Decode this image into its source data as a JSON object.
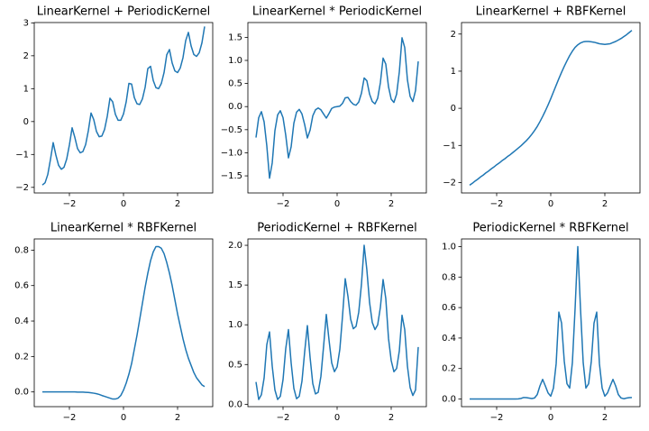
{
  "chart_data": [
    {
      "type": "line",
      "title": "LinearKernel + PeriodicKernel",
      "color": "#1f77b4",
      "x": [
        -3,
        -2.9,
        -2.8,
        -2.7,
        -2.6,
        -2.5,
        -2.4,
        -2.3,
        -2.2,
        -2.1,
        -2,
        -1.9,
        -1.8,
        -1.7,
        -1.6,
        -1.5,
        -1.4,
        -1.3,
        -1.2,
        -1.1,
        -1,
        -0.9,
        -0.8,
        -0.7,
        -0.6,
        -0.5,
        -0.4,
        -0.3,
        -0.2,
        -0.1,
        0,
        0.1,
        0.2,
        0.3,
        0.4,
        0.5,
        0.6,
        0.7,
        0.8,
        0.9,
        1,
        1.1,
        1.2,
        1.3,
        1.4,
        1.5,
        1.6,
        1.7,
        1.8,
        1.9,
        2,
        2.1,
        2.2,
        2.3,
        2.4,
        2.5,
        2.6,
        2.7,
        2.8,
        2.9,
        3
      ],
      "values": [
        -1.93,
        -1.86,
        -1.61,
        -1.15,
        -0.64,
        -1.02,
        -1.33,
        -1.45,
        -1.39,
        -1.14,
        -0.71,
        -0.19,
        -0.48,
        -0.82,
        -0.95,
        -0.91,
        -0.7,
        -0.28,
        0.26,
        0.06,
        -0.3,
        -0.46,
        -0.44,
        -0.24,
        0.16,
        0.71,
        0.6,
        0.22,
        0.04,
        0.04,
        0.23,
        0.6,
        1.16,
        1.14,
        0.73,
        0.54,
        0.52,
        0.69,
        1.04,
        1.61,
        1.68,
        1.25,
        1.03,
        1,
        1.16,
        1.49,
        2.03,
        2.19,
        1.78,
        1.54,
        1.49,
        1.63,
        1.94,
        2.46,
        2.71,
        2.3,
        2.04,
        1.98,
        2.09,
        2.39,
        2.89
      ],
      "xlim": [
        -3.3,
        3.3
      ],
      "ylim": [
        -2.17,
        3.01
      ],
      "xticks": [
        {
          "value": -2,
          "label": "−2"
        },
        0,
        2
      ],
      "yticks": [
        {
          "value": -2,
          "label": "−2"
        },
        {
          "value": -1,
          "label": "−1"
        },
        0,
        1,
        2,
        3
      ]
    },
    {
      "type": "line",
      "title": "LinearKernel * PeriodicKernel",
      "color": "#1f77b4",
      "x": [
        -3,
        -2.9,
        -2.8,
        -2.7,
        -2.6,
        -2.5,
        -2.4,
        -2.3,
        -2.2,
        -2.1,
        -2,
        -1.9,
        -1.8,
        -1.7,
        -1.6,
        -1.5,
        -1.4,
        -1.3,
        -1.2,
        -1.1,
        -1,
        -0.9,
        -0.8,
        -0.7,
        -0.6,
        -0.5,
        -0.4,
        -0.3,
        -0.2,
        -0.1,
        0,
        0.1,
        0.2,
        0.3,
        0.4,
        0.5,
        0.6,
        0.7,
        0.8,
        0.9,
        1,
        1.1,
        1.2,
        1.3,
        1.4,
        1.5,
        1.6,
        1.7,
        1.8,
        1.9,
        2,
        2.1,
        2.2,
        2.3,
        2.4,
        2.5,
        2.6,
        2.7,
        2.8,
        2.9,
        3
      ],
      "values": [
        -0.67,
        -0.24,
        -0.11,
        -0.33,
        -0.85,
        -1.55,
        -1.22,
        -0.52,
        -0.18,
        -0.09,
        -0.24,
        -0.62,
        -1.11,
        -0.87,
        -0.36,
        -0.12,
        -0.06,
        -0.16,
        -0.39,
        -0.68,
        -0.51,
        -0.2,
        -0.07,
        -0.03,
        -0.07,
        -0.16,
        -0.25,
        -0.15,
        -0.04,
        -0.01,
        0,
        0.01,
        0.07,
        0.19,
        0.2,
        0.11,
        0.05,
        0.03,
        0.1,
        0.29,
        0.62,
        0.56,
        0.27,
        0.11,
        0.06,
        0.18,
        0.52,
        1.05,
        0.92,
        0.43,
        0.16,
        0.09,
        0.27,
        0.75,
        1.49,
        1.28,
        0.58,
        0.22,
        0.11,
        0.35,
        0.98
      ],
      "xlim": [
        -3.3,
        3.3
      ],
      "ylim": [
        -1.87,
        1.82
      ],
      "xticks": [
        {
          "value": -2,
          "label": "−2"
        },
        0,
        2
      ],
      "yticks": [
        {
          "value": -1.5,
          "label": "−1.5"
        },
        {
          "value": -1,
          "label": "−1.0"
        },
        {
          "value": -0.5,
          "label": "−0.5"
        },
        {
          "value": 0,
          "label": "0.0"
        },
        0.5,
        {
          "value": 1,
          "label": "1.0"
        },
        1.5
      ]
    },
    {
      "type": "line",
      "title": "LinearKernel + RBFKernel",
      "color": "#1f77b4",
      "x": [
        -3,
        -2.9,
        -2.8,
        -2.7,
        -2.6,
        -2.5,
        -2.4,
        -2.3,
        -2.2,
        -2.1,
        -2,
        -1.9,
        -1.8,
        -1.7,
        -1.6,
        -1.5,
        -1.4,
        -1.3,
        -1.2,
        -1.1,
        -1,
        -0.9,
        -0.8,
        -0.7,
        -0.6,
        -0.5,
        -0.4,
        -0.3,
        -0.2,
        -0.1,
        0,
        0.1,
        0.2,
        0.3,
        0.4,
        0.5,
        0.6,
        0.7,
        0.8,
        0.9,
        1,
        1.1,
        1.2,
        1.3,
        1.4,
        1.5,
        1.6,
        1.7,
        1.8,
        1.9,
        2,
        2.1,
        2.2,
        2.3,
        2.4,
        2.5,
        2.6,
        2.7,
        2.8,
        2.9,
        3
      ],
      "values": [
        -2.07,
        -2.02,
        -1.96,
        -1.91,
        -1.85,
        -1.8,
        -1.74,
        -1.69,
        -1.63,
        -1.58,
        -1.52,
        -1.47,
        -1.41,
        -1.36,
        -1.3,
        -1.25,
        -1.19,
        -1.13,
        -1.07,
        -1.01,
        -0.94,
        -0.87,
        -0.79,
        -0.7,
        -0.6,
        -0.49,
        -0.36,
        -0.22,
        -0.07,
        0.09,
        0.26,
        0.44,
        0.62,
        0.8,
        0.97,
        1.13,
        1.28,
        1.42,
        1.54,
        1.64,
        1.71,
        1.76,
        1.79,
        1.8,
        1.8,
        1.79,
        1.78,
        1.76,
        1.74,
        1.73,
        1.72,
        1.73,
        1.74,
        1.77,
        1.8,
        1.84,
        1.88,
        1.93,
        1.98,
        2.04,
        2.1
      ],
      "xlim": [
        -3.3,
        3.3
      ],
      "ylim": [
        -2.28,
        2.31
      ],
      "xticks": [
        {
          "value": -2,
          "label": "−2"
        },
        0,
        2
      ],
      "yticks": [
        {
          "value": -2,
          "label": "−2"
        },
        {
          "value": -1,
          "label": "−1"
        },
        0,
        1,
        2
      ]
    },
    {
      "type": "line",
      "title": "LinearKernel * RBFKernel",
      "color": "#1f77b4",
      "x": [
        -3,
        -2.9,
        -2.8,
        -2.7,
        -2.6,
        -2.5,
        -2.4,
        -2.3,
        -2.2,
        -2.1,
        -2,
        -1.9,
        -1.8,
        -1.7,
        -1.6,
        -1.5,
        -1.4,
        -1.3,
        -1.2,
        -1.1,
        -1,
        -0.9,
        -0.8,
        -0.7,
        -0.6,
        -0.5,
        -0.4,
        -0.3,
        -0.2,
        -0.1,
        0,
        0.1,
        0.2,
        0.3,
        0.4,
        0.5,
        0.6,
        0.7,
        0.8,
        0.9,
        1,
        1.1,
        1.2,
        1.3,
        1.4,
        1.5,
        1.6,
        1.7,
        1.8,
        1.9,
        2,
        2.1,
        2.2,
        2.3,
        2.4,
        2.5,
        2.6,
        2.7,
        2.8,
        2.9,
        3
      ],
      "values": [
        0,
        0,
        0,
        0,
        0,
        0,
        0,
        0,
        0,
        0,
        0,
        0,
        0,
        -0.001,
        -0.001,
        -0.001,
        -0.002,
        -0.003,
        -0.005,
        -0.007,
        -0.01,
        -0.014,
        -0.02,
        -0.025,
        -0.03,
        -0.035,
        -0.04,
        -0.04,
        -0.035,
        -0.02,
        0.01,
        0.05,
        0.1,
        0.16,
        0.24,
        0.32,
        0.41,
        0.5,
        0.59,
        0.67,
        0.74,
        0.79,
        0.82,
        0.82,
        0.81,
        0.78,
        0.73,
        0.67,
        0.6,
        0.52,
        0.44,
        0.37,
        0.3,
        0.24,
        0.19,
        0.15,
        0.11,
        0.08,
        0.06,
        0.04,
        0.03
      ],
      "xlim": [
        -3.3,
        3.3
      ],
      "ylim": [
        -0.083,
        0.863
      ],
      "xticks": [
        {
          "value": -2,
          "label": "−2"
        },
        0,
        2
      ],
      "yticks": [
        {
          "value": 0,
          "label": "0.0"
        },
        0.2,
        0.4,
        0.6,
        0.8
      ]
    },
    {
      "type": "line",
      "title": "PeriodicKernel + RBFKernel",
      "color": "#1f77b4",
      "x": [
        -3,
        -2.9,
        -2.8,
        -2.7,
        -2.6,
        -2.5,
        -2.4,
        -2.3,
        -2.2,
        -2.1,
        -2,
        -1.9,
        -1.8,
        -1.7,
        -1.6,
        -1.5,
        -1.4,
        -1.3,
        -1.2,
        -1.1,
        -1,
        -0.9,
        -0.8,
        -0.7,
        -0.6,
        -0.5,
        -0.4,
        -0.3,
        -0.2,
        -0.1,
        0,
        0.1,
        0.2,
        0.3,
        0.4,
        0.5,
        0.6,
        0.7,
        0.8,
        0.9,
        1,
        1.1,
        1.2,
        1.3,
        1.4,
        1.5,
        1.6,
        1.7,
        1.8,
        1.9,
        2,
        2.1,
        2.2,
        2.3,
        2.4,
        2.5,
        2.6,
        2.7,
        2.8,
        2.9,
        3
      ],
      "values": [
        0.28,
        0.06,
        0.12,
        0.33,
        0.75,
        0.91,
        0.48,
        0.18,
        0.06,
        0.1,
        0.31,
        0.7,
        0.94,
        0.52,
        0.2,
        0.07,
        0.1,
        0.29,
        0.66,
        0.99,
        0.59,
        0.26,
        0.13,
        0.15,
        0.35,
        0.73,
        1.13,
        0.81,
        0.52,
        0.41,
        0.47,
        0.69,
        1.11,
        1.58,
        1.36,
        1.07,
        0.95,
        0.98,
        1.16,
        1.51,
        2,
        1.69,
        1.28,
        1.03,
        0.94,
        1,
        1.22,
        1.57,
        1.33,
        0.83,
        0.55,
        0.41,
        0.45,
        0.67,
        1.12,
        0.94,
        0.48,
        0.21,
        0.11,
        0.18,
        0.72
      ],
      "xlim": [
        -3.3,
        3.3
      ],
      "ylim": [
        -0.03,
        2.08
      ],
      "xticks": [
        {
          "value": -2,
          "label": "−2"
        },
        0,
        2
      ],
      "yticks": [
        {
          "value": 0,
          "label": "0.0"
        },
        0.5,
        {
          "value": 1,
          "label": "1.0"
        },
        1.5,
        {
          "value": 2,
          "label": "2.0"
        }
      ]
    },
    {
      "type": "line",
      "title": "PeriodicKernel * RBFKernel",
      "color": "#1f77b4",
      "x": [
        -3,
        -2.9,
        -2.8,
        -2.7,
        -2.6,
        -2.5,
        -2.4,
        -2.3,
        -2.2,
        -2.1,
        -2,
        -1.9,
        -1.8,
        -1.7,
        -1.6,
        -1.5,
        -1.4,
        -1.3,
        -1.2,
        -1.1,
        -1,
        -0.9,
        -0.8,
        -0.7,
        -0.6,
        -0.5,
        -0.4,
        -0.3,
        -0.2,
        -0.1,
        0,
        0.1,
        0.2,
        0.3,
        0.4,
        0.5,
        0.6,
        0.7,
        0.8,
        0.9,
        1,
        1.1,
        1.2,
        1.3,
        1.4,
        1.5,
        1.6,
        1.7,
        1.8,
        1.9,
        2,
        2.1,
        2.2,
        2.3,
        2.4,
        2.5,
        2.6,
        2.7,
        2.8,
        2.9,
        3
      ],
      "values": [
        0,
        0,
        0,
        0,
        0,
        0,
        0,
        0,
        0,
        0,
        0,
        0,
        0,
        0,
        0,
        0,
        0,
        0,
        0.001,
        0.004,
        0.01,
        0.009,
        0.006,
        0.003,
        0.007,
        0.029,
        0.086,
        0.129,
        0.086,
        0.04,
        0.019,
        0.072,
        0.232,
        0.57,
        0.498,
        0.248,
        0.1,
        0.072,
        0.239,
        0.593,
        1,
        0.593,
        0.239,
        0.072,
        0.1,
        0.248,
        0.498,
        0.57,
        0.232,
        0.072,
        0.019,
        0.04,
        0.086,
        0.129,
        0.086,
        0.029,
        0.007,
        0.002,
        0.006,
        0.009,
        0.01
      ],
      "xlim": [
        -3.3,
        3.3
      ],
      "ylim": [
        -0.05,
        1.05
      ],
      "xticks": [
        {
          "value": -2,
          "label": "−2"
        },
        0,
        2
      ],
      "yticks": [
        {
          "value": 0,
          "label": "0.0"
        },
        0.2,
        0.4,
        0.6,
        0.8,
        {
          "value": 1,
          "label": "1.0"
        }
      ]
    }
  ]
}
